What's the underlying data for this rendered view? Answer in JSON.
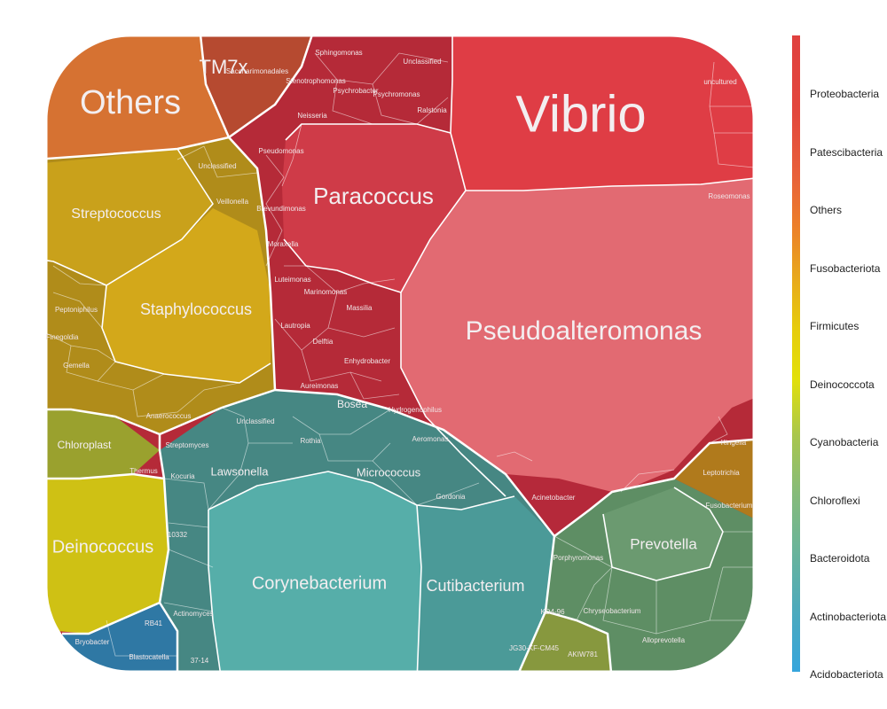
{
  "chart_data": {
    "type": "voronoi-treemap",
    "title": "",
    "phyla": [
      {
        "name": "Proteobacteria",
        "color": "#e0413f"
      },
      {
        "name": "Patescibacteria",
        "color": "#e85a38"
      },
      {
        "name": "Others",
        "color": "#ea7a2e"
      },
      {
        "name": "Fusobacteriota",
        "color": "#e6a21e"
      },
      {
        "name": "Firmicutes",
        "color": "#e8c20c"
      },
      {
        "name": "Deinococcota",
        "color": "#e6dc06"
      },
      {
        "name": "Cyanobacteria",
        "color": "#b9cb3a"
      },
      {
        "name": "Chloroflexi",
        "color": "#96c06e"
      },
      {
        "name": "Bacteroidota",
        "color": "#72b391"
      },
      {
        "name": "Actinobacteriota",
        "color": "#55aab0"
      },
      {
        "name": "Acidobacteriota",
        "color": "#3aa6d8"
      }
    ],
    "genera": [
      {
        "name": "Vibrio",
        "phylum": "Proteobacteria",
        "level": 1
      },
      {
        "name": "Pseudoalteromonas",
        "phylum": "Proteobacteria",
        "level": 2
      },
      {
        "name": "Paracoccus",
        "phylum": "Proteobacteria",
        "level": 2
      },
      {
        "name": "Corynebacterium",
        "phylum": "Actinobacteriota",
        "level": 2
      },
      {
        "name": "Cutibacterium",
        "phylum": "Actinobacteriota",
        "level": 3
      },
      {
        "name": "Staphylococcus",
        "phylum": "Firmicutes",
        "level": 3
      },
      {
        "name": "Streptococcus",
        "phylum": "Firmicutes",
        "level": 3
      },
      {
        "name": "Deinococcus",
        "phylum": "Deinococcota",
        "level": 3
      },
      {
        "name": "Others",
        "phylum": "Others",
        "level": 1
      },
      {
        "name": "TM7x",
        "phylum": "Patescibacteria",
        "level": 3
      },
      {
        "name": "Prevotella",
        "phylum": "Bacteroidota",
        "level": 3
      },
      {
        "name": "Lawsonella",
        "phylum": "Actinobacteriota",
        "level": 4
      },
      {
        "name": "Micrococcus",
        "phylum": "Actinobacteriota",
        "level": 4
      },
      {
        "name": "Chloroplast",
        "phylum": "Cyanobacteria",
        "level": 4
      },
      {
        "name": "Bosea",
        "phylum": "Proteobacteria",
        "level": 4
      }
    ]
  },
  "legend": [
    "Proteobacteria",
    "Patescibacteria",
    "Others",
    "Fusobacteriota",
    "Firmicutes",
    "Deinococcota",
    "Cyanobacteria",
    "Chloroflexi",
    "Bacteroidota",
    "Actinobacteriota",
    "Acidobacteriota"
  ]
}
